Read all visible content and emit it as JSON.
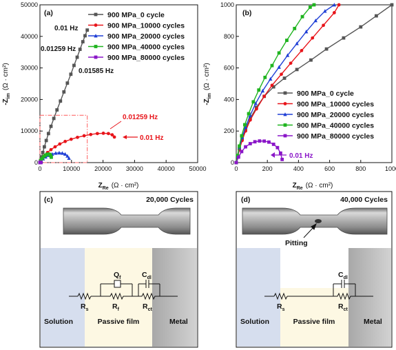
{
  "chart_data": [
    {
      "panel": "(a)",
      "type": "line",
      "xlabel": "Z",
      "xlabel_sub": "Re",
      "xlabel_unit": "(Ω · cm²)",
      "ylabel": "-Z",
      "ylabel_sub": "im",
      "ylabel_unit": "(Ω · cm²)",
      "xlim": [
        0,
        50000
      ],
      "ylim": [
        0,
        50000
      ],
      "xticks": [
        "0",
        "10000",
        "20000",
        "30000",
        "40000",
        "50000"
      ],
      "yticks": [
        "0",
        "10000",
        "20000",
        "30000",
        "40000",
        "50000"
      ],
      "legend_position": "top-right",
      "series": [
        {
          "name": "900 MPa_0 cycle",
          "color": "#555555",
          "marker": "square",
          "x": [
            0,
            200,
            500,
            900,
            1400,
            2000,
            2700,
            3500,
            4400,
            5400,
            6500,
            7600,
            8700,
            9800,
            10800,
            11800,
            12700,
            13600,
            14300,
            15000
          ],
          "y": [
            0,
            700,
            1800,
            3200,
            5000,
            7000,
            9200,
            11500,
            14000,
            16700,
            19500,
            22400,
            25200,
            28000,
            30800,
            33400,
            35900,
            38300,
            40200,
            42000
          ]
        },
        {
          "name": "900 MPa_10000 cycles",
          "color": "#e8141a",
          "marker": "circle",
          "x": [
            0,
            300,
            800,
            1500,
            2400,
            3500,
            4800,
            6300,
            8000,
            9900,
            11900,
            14000,
            16100,
            18200,
            20100,
            21700,
            22900,
            23600
          ],
          "y": [
            0,
            600,
            1400,
            2300,
            3200,
            4100,
            5000,
            5900,
            6700,
            7400,
            8000,
            8500,
            8900,
            9200,
            9300,
            9200,
            8800,
            8100
          ]
        },
        {
          "name": "900 MPa_20000 cycles",
          "color": "#1f3fd6",
          "marker": "triangle",
          "x": [
            0,
            400,
            1000,
            1800,
            2800,
            3900,
            5000,
            6100,
            7100,
            8000,
            8700,
            9200
          ],
          "y": [
            0,
            600,
            1200,
            1800,
            2300,
            2700,
            3000,
            3100,
            3000,
            2700,
            2100,
            1400
          ]
        },
        {
          "name": "900 MPa_40000 cycles",
          "color": "#1fb41f",
          "marker": "square",
          "x": [
            0,
            300,
            700,
            1200,
            1700,
            2200,
            2700,
            3100,
            3400,
            3600
          ],
          "y": [
            0,
            700,
            1300,
            1900,
            2300,
            2600,
            2700,
            2600,
            2200,
            1700
          ]
        },
        {
          "name": "900 MPa_80000 cycles",
          "color": "#8a16c8",
          "marker": "square",
          "x": [
            0,
            60,
            120,
            180,
            240,
            300,
            330
          ],
          "y": [
            0,
            80,
            120,
            135,
            120,
            70,
            20
          ]
        }
      ],
      "annotations": [
        {
          "text": "0.01 Hz",
          "color": "#111111"
        },
        {
          "text": "0.01259 Hz",
          "color": "#111111"
        },
        {
          "text": "0.01585 Hz",
          "color": "#111111"
        },
        {
          "text": "0.01259 Hz",
          "color": "#e8141a"
        },
        {
          "text": "0.01 Hz",
          "color": "#e8141a"
        }
      ],
      "inset_box": {
        "xlim": [
          0,
          15000
        ],
        "ylim": [
          0,
          15000
        ],
        "color": "#ff6b6b"
      }
    },
    {
      "panel": "(b)",
      "type": "line",
      "xlabel": "Z",
      "xlabel_sub": "Re",
      "xlabel_unit": "(Ω · cm²)",
      "ylabel": "-Z",
      "ylabel_sub": "im",
      "ylabel_unit": "(Ω · cm²)",
      "xlim": [
        0,
        1000
      ],
      "ylim": [
        0,
        1000
      ],
      "xticks": [
        "0",
        "200",
        "400",
        "600",
        "800",
        "1000"
      ],
      "yticks": [
        "0",
        "200",
        "400",
        "600",
        "800",
        "1000"
      ],
      "legend_position": "center-right",
      "series": [
        {
          "name": "900 MPa_0 cycle",
          "color": "#555555",
          "marker": "square",
          "x": [
            0,
            8,
            20,
            38,
            60,
            90,
            130,
            180,
            240,
            310,
            390,
            480,
            580,
            690,
            800,
            900,
            1000
          ],
          "y": [
            0,
            40,
            90,
            150,
            210,
            280,
            350,
            420,
            480,
            535,
            590,
            650,
            720,
            790,
            860,
            930,
            1000
          ]
        },
        {
          "name": "900 MPa_10000 cycles",
          "color": "#e8141a",
          "marker": "circle",
          "x": [
            0,
            8,
            20,
            38,
            60,
            90,
            130,
            180,
            230,
            290,
            350,
            420,
            490,
            560,
            630,
            660
          ],
          "y": [
            0,
            35,
            80,
            140,
            200,
            270,
            340,
            420,
            490,
            560,
            630,
            710,
            790,
            870,
            950,
            1000
          ]
        },
        {
          "name": "900 MPa_20000 cycles",
          "color": "#1f3fd6",
          "marker": "triangle",
          "x": [
            0,
            8,
            20,
            38,
            60,
            90,
            125,
            170,
            220,
            275,
            330,
            390,
            450,
            510,
            570,
            630
          ],
          "y": [
            0,
            40,
            95,
            160,
            225,
            300,
            375,
            455,
            530,
            605,
            680,
            755,
            830,
            900,
            960,
            1000
          ]
        },
        {
          "name": "900 MPa_40000 cycles",
          "color": "#1fb41f",
          "marker": "square",
          "x": [
            0,
            8,
            20,
            35,
            55,
            80,
            110,
            145,
            185,
            230,
            275,
            325,
            375,
            425,
            475,
            500
          ],
          "y": [
            0,
            45,
            105,
            170,
            240,
            310,
            385,
            460,
            540,
            615,
            695,
            775,
            850,
            925,
            985,
            1000
          ]
        },
        {
          "name": "900 MPa_80000 cycles",
          "color": "#8a16c8",
          "marker": "square",
          "x": [
            0,
            15,
            35,
            60,
            90,
            120,
            150,
            180,
            210,
            240,
            265,
            285,
            295
          ],
          "y": [
            0,
            35,
            70,
            100,
            120,
            132,
            137,
            136,
            130,
            116,
            95,
            60,
            20
          ]
        }
      ],
      "annotations": [
        {
          "text": "0.01 Hz",
          "color": "#8a16c8"
        }
      ]
    }
  ],
  "panel_c": {
    "label": "(c)",
    "cycles": "20,000 Cycles",
    "regions": [
      "Solution",
      "Passive film",
      "Metal"
    ],
    "components": {
      "rs": "R",
      "rs_sub": "s",
      "rf": "R",
      "rf_sub": "f",
      "qf": "Q",
      "qf_sub": "f",
      "cdl": "C",
      "cdl_sub": "dl",
      "rct": "R",
      "rct_sub": "ct"
    },
    "colors": {
      "solution": "#d6deee",
      "passive": "#fdf8e3",
      "metal": "#c9c9c9"
    }
  },
  "panel_d": {
    "label": "(d)",
    "cycles": "40,000 Cycles",
    "pitting": "Pitting",
    "regions": [
      "Solution",
      "Passive film",
      "Metal"
    ],
    "components": {
      "rs": "R",
      "rs_sub": "s",
      "cdl": "C",
      "cdl_sub": "dl",
      "rct": "R",
      "rct_sub": "ct"
    },
    "colors": {
      "solution": "#d6deee",
      "passive": "#fdf8e3",
      "metal": "#c9c9c9"
    }
  }
}
